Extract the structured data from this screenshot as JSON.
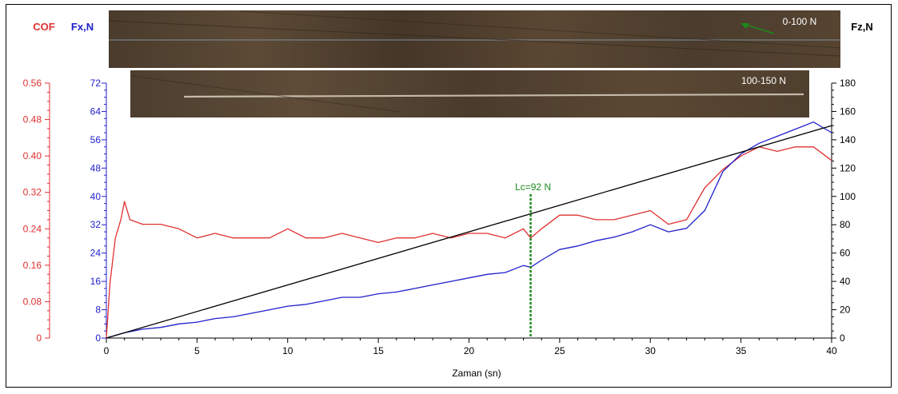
{
  "chart_data": {
    "type": "line",
    "xlabel": "Zaman (sn)",
    "xlim": [
      0,
      40
    ],
    "x_ticks": [
      "0",
      "5",
      "10",
      "15",
      "20",
      "25",
      "30",
      "35",
      "40"
    ],
    "axes": {
      "cof": {
        "label": "COF",
        "color": "#e03030",
        "range": [
          0,
          0.56
        ],
        "ticks": [
          "0",
          "0.08",
          "0.16",
          "0.24",
          "0.32",
          "0.40",
          "0.48",
          "0.56"
        ]
      },
      "fx": {
        "label": "Fx,N",
        "color": "#2020cc",
        "range": [
          0,
          72
        ],
        "ticks": [
          "0",
          "8",
          "16",
          "24",
          "32",
          "40",
          "48",
          "56",
          "64",
          "72"
        ]
      },
      "fz": {
        "label": "Fz,N",
        "color": "#000000",
        "range": [
          0,
          180
        ],
        "ticks": [
          "0",
          "20",
          "40",
          "60",
          "80",
          "100",
          "120",
          "140",
          "160",
          "180"
        ]
      }
    },
    "series": [
      {
        "axis": "cof",
        "color": "#e03030",
        "x": [
          0,
          0.2,
          0.5,
          0.8,
          1.0,
          1.3,
          2,
          3,
          4,
          5,
          6,
          7,
          8,
          9,
          10,
          11,
          12,
          13,
          14,
          15,
          16,
          17,
          18,
          19,
          20,
          21,
          22,
          23,
          23.4,
          24,
          25,
          26,
          27,
          28,
          29,
          30,
          31,
          32,
          33,
          34,
          35,
          36,
          37,
          38,
          39,
          40
        ],
        "y": [
          0,
          0.12,
          0.22,
          0.26,
          0.3,
          0.26,
          0.25,
          0.25,
          0.24,
          0.22,
          0.23,
          0.22,
          0.22,
          0.22,
          0.24,
          0.22,
          0.22,
          0.23,
          0.22,
          0.21,
          0.22,
          0.22,
          0.23,
          0.22,
          0.23,
          0.23,
          0.22,
          0.24,
          0.22,
          0.24,
          0.27,
          0.27,
          0.26,
          0.26,
          0.27,
          0.28,
          0.25,
          0.26,
          0.33,
          0.37,
          0.4,
          0.42,
          0.41,
          0.42,
          0.42,
          0.39
        ]
      },
      {
        "axis": "fx",
        "color": "#2020cc",
        "x": [
          0,
          1,
          2,
          3,
          4,
          5,
          6,
          7,
          8,
          9,
          10,
          11,
          12,
          13,
          14,
          15,
          16,
          17,
          18,
          19,
          20,
          21,
          22,
          23,
          23.4,
          24,
          25,
          26,
          27,
          28,
          29,
          30,
          31,
          32,
          33,
          34,
          35,
          36,
          37,
          38,
          39,
          40
        ],
        "y": [
          0,
          1.5,
          2.5,
          3,
          4,
          4.5,
          5.5,
          6,
          7,
          8,
          9,
          9.5,
          10.5,
          11.5,
          11.5,
          12.5,
          13,
          14,
          15,
          16,
          17,
          18,
          18.5,
          20.5,
          20,
          22,
          25,
          26,
          27.5,
          28.5,
          30,
          32,
          30,
          31,
          36,
          47,
          52,
          55,
          57,
          59,
          61,
          58
        ]
      },
      {
        "axis": "fz",
        "color": "#000000",
        "x": [
          0,
          40
        ],
        "y": [
          0,
          150
        ]
      }
    ],
    "annotations": [
      {
        "text": "Lc=92 N",
        "x": 23.4,
        "color": "#1a8a1a"
      },
      {
        "text": "0-100 N"
      },
      {
        "text": "100-150 N"
      }
    ]
  }
}
